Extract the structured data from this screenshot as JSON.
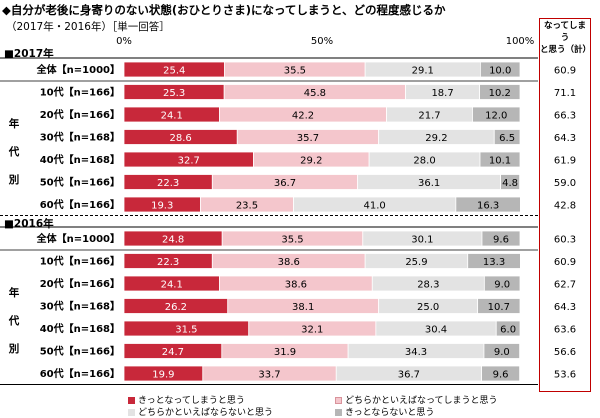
{
  "title": "◆自分が老後に身寄りのない状態(おひとりさま)になってしまうと、どの程度感じるか",
  "subtitle": "（2017年・2016年）［単一回答］",
  "total_header": [
    "なってしまう",
    "と思う（計）"
  ],
  "chart_data": {
    "type": "bar",
    "orientation": "horizontal",
    "stacked": true,
    "xlim": [
      0,
      100
    ],
    "x_ticks": [
      "0%",
      "50%",
      "100%"
    ],
    "side_label": "年代別",
    "series": [
      {
        "name": "きっとなってしまうと思う",
        "color": "#c8283a"
      },
      {
        "name": "どちらかといえばなってしまうと思う",
        "color": "#f4c6cc"
      },
      {
        "name": "どちらかといえばならないと思う",
        "color": "#e3e3e3"
      },
      {
        "name": "きっとならないと思う",
        "color": "#b6b6b6"
      }
    ],
    "groups": [
      {
        "year": "■2017年",
        "rows": [
          {
            "label": "全体【n=1000】",
            "values": [
              25.4,
              35.5,
              29.1,
              10.0
            ],
            "total": "60.9"
          },
          {
            "label": "10代【n=166】",
            "values": [
              25.3,
              45.8,
              18.7,
              10.2
            ],
            "total": "71.1"
          },
          {
            "label": "20代【n=166】",
            "values": [
              24.1,
              42.2,
              21.7,
              12.0
            ],
            "total": "66.3"
          },
          {
            "label": "30代【n=168】",
            "values": [
              28.6,
              35.7,
              29.2,
              6.5
            ],
            "total": "64.3"
          },
          {
            "label": "40代【n=168】",
            "values": [
              32.7,
              29.2,
              28.0,
              10.1
            ],
            "total": "61.9"
          },
          {
            "label": "50代【n=166】",
            "values": [
              22.3,
              36.7,
              36.1,
              4.8
            ],
            "total": "59.0"
          },
          {
            "label": "60代【n=166】",
            "values": [
              19.3,
              23.5,
              41.0,
              16.3
            ],
            "total": "42.8"
          }
        ]
      },
      {
        "year": "■2016年",
        "rows": [
          {
            "label": "全体【n=1000】",
            "values": [
              24.8,
              35.5,
              30.1,
              9.6
            ],
            "total": "60.3"
          },
          {
            "label": "10代【n=166】",
            "values": [
              22.3,
              38.6,
              25.9,
              13.3
            ],
            "total": "60.9"
          },
          {
            "label": "20代【n=166】",
            "values": [
              24.1,
              38.6,
              28.3,
              9.0
            ],
            "total": "62.7"
          },
          {
            "label": "30代【n=168】",
            "values": [
              26.2,
              38.1,
              25.0,
              10.7
            ],
            "total": "64.3"
          },
          {
            "label": "40代【n=168】",
            "values": [
              31.5,
              32.1,
              30.4,
              6.0
            ],
            "total": "63.6"
          },
          {
            "label": "50代【n=166】",
            "values": [
              24.7,
              31.9,
              34.3,
              9.0
            ],
            "total": "56.6"
          },
          {
            "label": "60代【n=166】",
            "values": [
              19.9,
              33.7,
              36.7,
              9.6
            ],
            "total": "53.6"
          }
        ]
      }
    ]
  }
}
